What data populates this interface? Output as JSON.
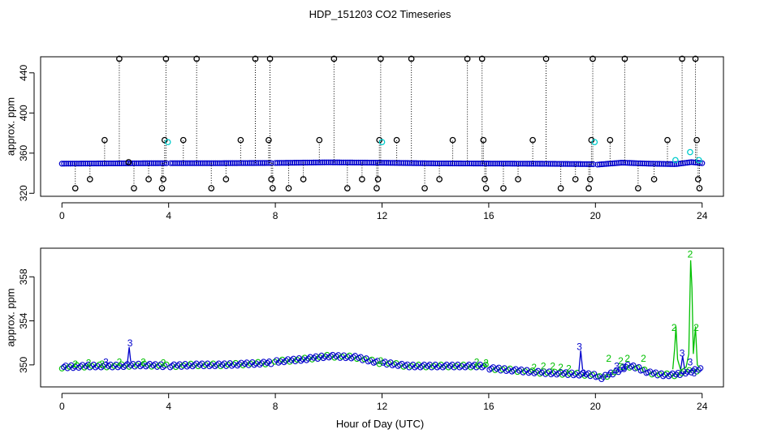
{
  "figure": {
    "title": "HDP_151203  CO2 Timeseries",
    "xlabel": "Hour of Day (UTC)"
  },
  "colors": {
    "primary": "#000000",
    "blue": "#0000cc",
    "cyan": "#00cccc",
    "green": "#00c000"
  },
  "chart_data": [
    {
      "type": "scatter",
      "ylabel": "approx. ppm",
      "xlim": [
        -0.8,
        24.8
      ],
      "ylim": [
        317,
        456
      ],
      "x_ticks": [
        0,
        4,
        8,
        12,
        16,
        20,
        24
      ],
      "y_ticks": [
        320,
        360,
        400,
        440
      ],
      "baseline": [
        [
          0,
          349.5
        ],
        [
          2,
          349.8
        ],
        [
          4,
          350
        ],
        [
          6,
          350
        ],
        [
          8,
          350.2
        ],
        [
          10,
          350.8
        ],
        [
          12,
          350.4
        ],
        [
          14,
          349.8
        ],
        [
          16,
          349.6
        ],
        [
          18,
          349.4
        ],
        [
          19.9,
          349
        ],
        [
          20.05,
          348.5
        ],
        [
          21,
          350.5
        ],
        [
          22,
          349.5
        ],
        [
          23,
          349
        ],
        [
          23.6,
          351
        ],
        [
          24,
          350
        ]
      ],
      "gaps": [
        [
          3.97,
          4.03
        ],
        [
          7.9,
          7.98
        ],
        [
          11.95,
          12.0
        ],
        [
          15.95,
          16.0
        ],
        [
          19.97,
          20.02
        ]
      ],
      "black_points": [
        {
          "x": 0.5,
          "y": 325
        },
        {
          "x": 1.05,
          "y": 334
        },
        {
          "x": 1.6,
          "y": 373
        },
        {
          "x": 2.15,
          "y": 454
        },
        {
          "x": 2.5,
          "y": 351
        },
        {
          "x": 2.7,
          "y": 325
        },
        {
          "x": 3.25,
          "y": 334
        },
        {
          "x": 3.75,
          "y": 325
        },
        {
          "x": 3.8,
          "y": 334
        },
        {
          "x": 3.85,
          "y": 373
        },
        {
          "x": 3.9,
          "y": 454
        },
        {
          "x": 4.55,
          "y": 373
        },
        {
          "x": 5.05,
          "y": 454
        },
        {
          "x": 5.6,
          "y": 325
        },
        {
          "x": 6.15,
          "y": 334
        },
        {
          "x": 6.7,
          "y": 373
        },
        {
          "x": 7.25,
          "y": 454
        },
        {
          "x": 7.75,
          "y": 373
        },
        {
          "x": 7.8,
          "y": 454
        },
        {
          "x": 7.85,
          "y": 334
        },
        {
          "x": 7.9,
          "y": 325
        },
        {
          "x": 8.5,
          "y": 325
        },
        {
          "x": 9.05,
          "y": 334
        },
        {
          "x": 9.65,
          "y": 373
        },
        {
          "x": 10.2,
          "y": 454
        },
        {
          "x": 10.7,
          "y": 325
        },
        {
          "x": 11.25,
          "y": 334
        },
        {
          "x": 11.8,
          "y": 325
        },
        {
          "x": 11.85,
          "y": 334
        },
        {
          "x": 11.9,
          "y": 373
        },
        {
          "x": 11.95,
          "y": 454
        },
        {
          "x": 12.55,
          "y": 373
        },
        {
          "x": 13.1,
          "y": 454
        },
        {
          "x": 13.6,
          "y": 325
        },
        {
          "x": 14.15,
          "y": 334
        },
        {
          "x": 14.65,
          "y": 373
        },
        {
          "x": 15.2,
          "y": 454
        },
        {
          "x": 15.75,
          "y": 454
        },
        {
          "x": 15.8,
          "y": 373
        },
        {
          "x": 15.85,
          "y": 334
        },
        {
          "x": 15.9,
          "y": 325
        },
        {
          "x": 16.55,
          "y": 325
        },
        {
          "x": 17.1,
          "y": 334
        },
        {
          "x": 17.65,
          "y": 373
        },
        {
          "x": 18.15,
          "y": 454
        },
        {
          "x": 18.7,
          "y": 325
        },
        {
          "x": 19.25,
          "y": 334
        },
        {
          "x": 19.75,
          "y": 325
        },
        {
          "x": 19.8,
          "y": 334
        },
        {
          "x": 19.85,
          "y": 373
        },
        {
          "x": 19.9,
          "y": 454
        },
        {
          "x": 20.55,
          "y": 373
        },
        {
          "x": 21.1,
          "y": 454
        },
        {
          "x": 21.6,
          "y": 325
        },
        {
          "x": 22.2,
          "y": 334
        },
        {
          "x": 22.7,
          "y": 373
        },
        {
          "x": 23.25,
          "y": 454
        },
        {
          "x": 23.75,
          "y": 454
        },
        {
          "x": 23.8,
          "y": 373
        },
        {
          "x": 23.85,
          "y": 334
        },
        {
          "x": 23.9,
          "y": 325
        }
      ],
      "cyan_points": [
        {
          "x": 3.97,
          "y": 371
        },
        {
          "x": 12.0,
          "y": 371
        },
        {
          "x": 19.97,
          "y": 371
        },
        {
          "x": 23.0,
          "y": 353
        },
        {
          "x": 23.55,
          "y": 361
        },
        {
          "x": 23.88,
          "y": 353
        }
      ]
    },
    {
      "type": "scatter",
      "ylabel": "approx. ppm",
      "xlim": [
        -0.8,
        24.8
      ],
      "ylim": [
        348.0,
        360.6
      ],
      "x_ticks": [
        0,
        4,
        8,
        12,
        16,
        20,
        24
      ],
      "y_ticks": [
        350,
        354,
        358
      ],
      "gaps": [
        [
          3.97,
          4.03
        ],
        [
          7.9,
          7.98
        ],
        [
          11.95,
          12.0
        ],
        [
          15.95,
          16.0
        ],
        [
          19.97,
          20.02
        ]
      ],
      "baseline": [
        [
          0,
          349.8
        ],
        [
          1,
          349.9
        ],
        [
          2,
          349.9
        ],
        [
          3,
          350.0
        ],
        [
          4,
          349.9
        ],
        [
          5,
          350.0
        ],
        [
          6,
          350.0
        ],
        [
          7,
          350.1
        ],
        [
          7.9,
          350.2
        ],
        [
          8,
          350.3
        ],
        [
          9,
          350.5
        ],
        [
          10,
          350.8
        ],
        [
          11,
          350.7
        ],
        [
          11.9,
          350.2
        ],
        [
          12,
          350.2
        ],
        [
          13,
          349.9
        ],
        [
          14,
          349.9
        ],
        [
          15,
          349.9
        ],
        [
          15.9,
          349.9
        ],
        [
          16,
          349.7
        ],
        [
          17,
          349.5
        ],
        [
          18,
          349.3
        ],
        [
          19,
          349.2
        ],
        [
          19.9,
          349.1
        ],
        [
          20.05,
          349.0
        ],
        [
          20.2,
          348.8
        ],
        [
          20.8,
          349.4
        ],
        [
          21.2,
          349.9
        ],
        [
          21.5,
          349.8
        ],
        [
          22,
          349.3
        ],
        [
          22.5,
          349.1
        ],
        [
          23,
          349.1
        ],
        [
          23.5,
          349.4
        ],
        [
          24,
          349.6
        ]
      ],
      "green_line": [
        [
          22.9,
          349.6
        ],
        [
          22.97,
          351.5
        ],
        [
          23.02,
          353.5
        ],
        [
          23.08,
          350.5
        ],
        [
          23.2,
          349.5
        ],
        [
          23.4,
          349.8
        ],
        [
          23.5,
          351
        ],
        [
          23.57,
          359.5
        ],
        [
          23.62,
          357
        ],
        [
          23.67,
          351
        ],
        [
          23.75,
          353.5
        ],
        [
          23.82,
          350
        ],
        [
          23.9,
          349.8
        ]
      ],
      "blue_line": [
        [
          2.45,
          350.1
        ],
        [
          2.52,
          351.6
        ],
        [
          2.58,
          350.3
        ],
        [
          19.38,
          349.4
        ],
        [
          19.45,
          351.3
        ],
        [
          19.52,
          349.6
        ],
        [
          23.2,
          349.6
        ],
        [
          23.27,
          350.8
        ],
        [
          23.34,
          349.7
        ]
      ],
      "labels_2": [
        {
          "x": 0.5,
          "y": 350.0
        },
        {
          "x": 1.0,
          "y": 350.1
        },
        {
          "x": 1.5,
          "y": 350.0
        },
        {
          "x": 2.15,
          "y": 350.2
        },
        {
          "x": 3.05,
          "y": 350.2
        },
        {
          "x": 3.8,
          "y": 350.1
        },
        {
          "x": 11.95,
          "y": 350.3
        },
        {
          "x": 15.55,
          "y": 350.2
        },
        {
          "x": 15.9,
          "y": 350.1
        },
        {
          "x": 17.7,
          "y": 349.7
        },
        {
          "x": 18.05,
          "y": 349.8
        },
        {
          "x": 18.4,
          "y": 349.8
        },
        {
          "x": 18.7,
          "y": 349.7
        },
        {
          "x": 19.0,
          "y": 349.6
        },
        {
          "x": 20.5,
          "y": 350.5
        },
        {
          "x": 20.95,
          "y": 350.3
        },
        {
          "x": 21.2,
          "y": 350.5
        },
        {
          "x": 21.8,
          "y": 350.5
        },
        {
          "x": 22.95,
          "y": 353.3
        },
        {
          "x": 23.55,
          "y": 360.0
        },
        {
          "x": 23.78,
          "y": 353.3
        }
      ],
      "labels_3": [
        {
          "x": 1.65,
          "y": 350.2
        },
        {
          "x": 2.55,
          "y": 351.9
        },
        {
          "x": 19.4,
          "y": 351.6
        },
        {
          "x": 19.55,
          "y": 349.2
        },
        {
          "x": 20.8,
          "y": 349.8
        },
        {
          "x": 21.05,
          "y": 349.7
        },
        {
          "x": 23.25,
          "y": 351.0
        },
        {
          "x": 23.55,
          "y": 350.2
        },
        {
          "x": 23.7,
          "y": 349.2
        }
      ]
    }
  ]
}
